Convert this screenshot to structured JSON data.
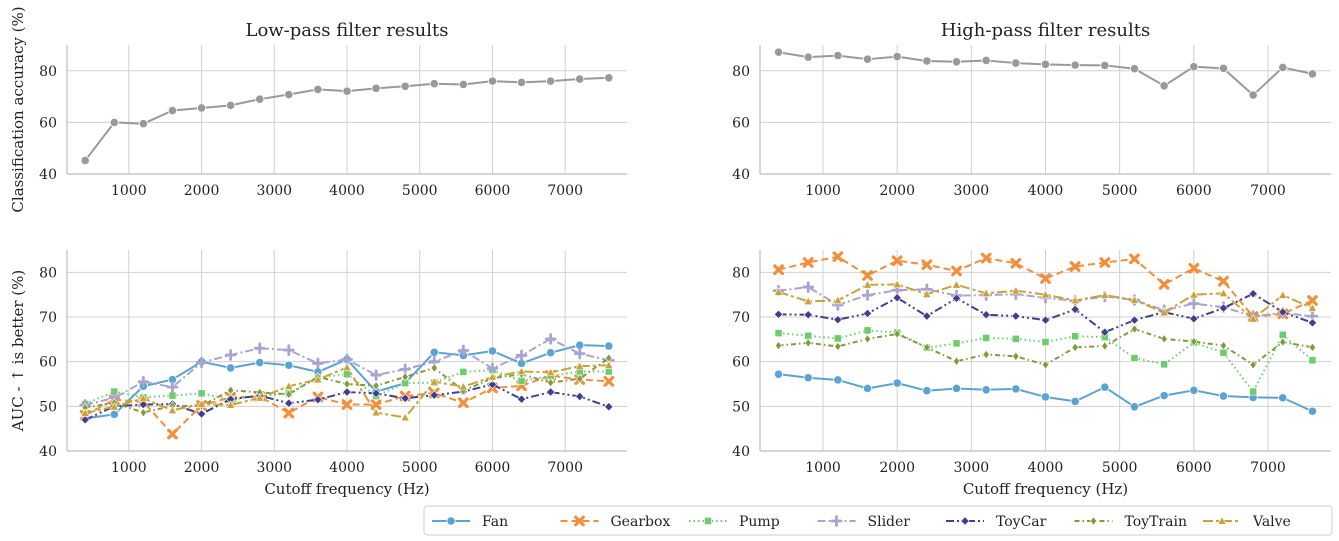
{
  "chart_data": [
    {
      "type": "line",
      "title": "Low-pass filter results",
      "xlabel": "",
      "ylabel": "Classification accuracy (%)",
      "x": [
        400,
        800,
        1200,
        1600,
        2000,
        2400,
        2800,
        3200,
        3600,
        4000,
        4400,
        4800,
        5200,
        5600,
        6000,
        6400,
        6800,
        7200,
        7600
      ],
      "xticks": [
        "1000",
        "2000",
        "3000",
        "4000",
        "5000",
        "6000",
        "7000"
      ],
      "ylim": [
        40,
        90
      ],
      "yticks": [
        "40",
        "60",
        "80"
      ],
      "grid": true,
      "series": [
        {
          "values": [
            45.2,
            60.0,
            59.5,
            64.6,
            65.6,
            66.6,
            69.0,
            70.8,
            72.8,
            72.1,
            73.2,
            74.0,
            75.0,
            74.7,
            76.0,
            75.5,
            76.0,
            76.8,
            77.3
          ]
        }
      ]
    },
    {
      "type": "line",
      "title": "High-pass filter results",
      "xlabel": "",
      "ylabel": "",
      "x": [
        400,
        800,
        1200,
        1600,
        2000,
        2400,
        2800,
        3200,
        3600,
        4000,
        4400,
        4800,
        5200,
        5600,
        6000,
        6400,
        6800,
        7200,
        7600
      ],
      "xticks": [
        "1000",
        "2000",
        "3000",
        "4000",
        "5000",
        "6000",
        "7000"
      ],
      "ylim": [
        40,
        90
      ],
      "yticks": [
        "40",
        "60",
        "80"
      ],
      "grid": true,
      "series": [
        {
          "values": [
            87.2,
            85.3,
            85.9,
            84.5,
            85.5,
            83.8,
            83.5,
            84.0,
            83.0,
            82.5,
            82.2,
            82.1,
            80.8,
            74.2,
            81.6,
            80.9,
            70.6,
            81.3,
            78.8
          ]
        }
      ]
    },
    {
      "type": "line",
      "title": "",
      "xlabel": "Cutoff frequency (Hz)",
      "ylabel": "AUC - ↑ is better (%)",
      "x": [
        400,
        800,
        1200,
        1600,
        2000,
        2400,
        2800,
        3200,
        3600,
        4000,
        4400,
        4800,
        5200,
        5600,
        6000,
        6400,
        6800,
        7200,
        7600
      ],
      "xticks": [
        "1000",
        "2000",
        "3000",
        "4000",
        "5000",
        "6000",
        "7000"
      ],
      "ylim": [
        40,
        85
      ],
      "yticks": [
        "40",
        "50",
        "60",
        "70",
        "80"
      ],
      "grid": true,
      "series": [
        {
          "name": "Fan",
          "values": [
            47.3,
            48.2,
            54.5,
            56.0,
            60.0,
            58.6,
            59.8,
            59.2,
            57.7,
            60.5,
            53.3,
            55.2,
            62.1,
            61.4,
            62.4,
            59.6,
            62.0,
            63.7,
            63.5
          ]
        },
        {
          "name": "Gearbox",
          "values": [
            48.0,
            51.5,
            51.0,
            43.8,
            50.2,
            52.0,
            52.2,
            48.5,
            52.1,
            50.4,
            50.4,
            52.3,
            53.0,
            50.8,
            54.1,
            54.6,
            56.9,
            56.0,
            55.6
          ]
        },
        {
          "name": "Pump",
          "values": [
            50.5,
            53.3,
            52.0,
            52.4,
            52.9,
            51.5,
            52.3,
            52.9,
            56.4,
            57.2,
            52.3,
            55.2,
            55.3,
            57.7,
            58.1,
            55.7,
            56.8,
            57.8,
            57.8
          ]
        },
        {
          "name": "Slider",
          "values": [
            50.3,
            51.9,
            55.5,
            54.3,
            59.8,
            61.5,
            63.0,
            62.6,
            59.6,
            60.5,
            57.0,
            58.3,
            60.0,
            62.5,
            58.5,
            61.4,
            65.1,
            61.8,
            60.3
          ]
        },
        {
          "name": "ToyCar",
          "values": [
            47.0,
            50.0,
            50.4,
            50.5,
            48.3,
            51.6,
            52.4,
            50.7,
            51.5,
            53.2,
            52.9,
            51.8,
            52.5,
            53.3,
            54.9,
            51.6,
            53.2,
            52.2,
            49.9
          ]
        },
        {
          "name": "ToyTrain",
          "values": [
            49.7,
            50.8,
            48.6,
            50.1,
            50.1,
            53.6,
            53.1,
            52.7,
            56.6,
            55.0,
            54.6,
            56.6,
            58.6,
            53.5,
            56.3,
            57.2,
            55.3,
            56.2,
            60.8
          ]
        },
        {
          "name": "Valve",
          "values": [
            48.5,
            49.9,
            51.8,
            49.1,
            50.5,
            50.3,
            51.9,
            54.5,
            56.0,
            58.7,
            48.6,
            47.5,
            55.5,
            54.4,
            56.6,
            57.8,
            57.6,
            59.0,
            59.2
          ]
        }
      ]
    },
    {
      "type": "line",
      "title": "",
      "xlabel": "Cutoff frequency (Hz)",
      "ylabel": "",
      "x": [
        400,
        800,
        1200,
        1600,
        2000,
        2400,
        2800,
        3200,
        3600,
        4000,
        4400,
        4800,
        5200,
        5600,
        6000,
        6400,
        6800,
        7200,
        7600
      ],
      "xticks": [
        "1000",
        "2000",
        "3000",
        "4000",
        "5000",
        "6000",
        "7000"
      ],
      "ylim": [
        40,
        85
      ],
      "yticks": [
        "40",
        "50",
        "60",
        "70",
        "80"
      ],
      "grid": true,
      "series": [
        {
          "name": "Fan",
          "values": [
            57.2,
            56.4,
            55.9,
            54.0,
            55.2,
            53.5,
            54.0,
            53.7,
            53.9,
            52.1,
            51.1,
            54.3,
            49.9,
            52.4,
            53.6,
            52.3,
            52.0,
            51.9,
            48.9
          ]
        },
        {
          "name": "Gearbox",
          "values": [
            80.6,
            82.2,
            83.5,
            79.3,
            82.6,
            81.7,
            80.3,
            83.2,
            82.0,
            78.6,
            81.3,
            82.2,
            83.0,
            77.3,
            80.9,
            78.0,
            70.1,
            70.7,
            73.7
          ]
        },
        {
          "name": "Pump",
          "values": [
            66.4,
            65.8,
            65.2,
            67.0,
            66.5,
            63.1,
            64.1,
            65.3,
            65.1,
            64.4,
            65.7,
            65.5,
            60.8,
            59.4,
            64.3,
            62.0,
            53.3,
            66.0,
            60.3
          ]
        },
        {
          "name": "Slider",
          "values": [
            75.9,
            76.7,
            72.7,
            74.9,
            76.0,
            76.2,
            74.8,
            74.9,
            75.1,
            74.3,
            73.6,
            74.6,
            73.8,
            71.5,
            73.0,
            72.2,
            70.2,
            70.9,
            70.2
          ]
        },
        {
          "name": "ToyCar",
          "values": [
            70.6,
            70.5,
            69.4,
            70.8,
            74.3,
            70.2,
            74.2,
            70.5,
            70.2,
            69.3,
            71.7,
            66.6,
            69.3,
            71.1,
            69.6,
            72.0,
            75.2,
            71.1,
            68.7
          ]
        },
        {
          "name": "ToyTrain",
          "values": [
            63.6,
            64.2,
            63.4,
            65.1,
            66.2,
            63.2,
            60.1,
            61.6,
            61.2,
            59.3,
            63.2,
            63.5,
            67.3,
            65.1,
            64.5,
            63.6,
            59.3,
            64.4,
            63.2
          ]
        },
        {
          "name": "Valve",
          "values": [
            75.6,
            73.5,
            73.7,
            77.2,
            77.3,
            75.1,
            77.2,
            75.3,
            75.9,
            75.0,
            73.7,
            74.9,
            73.8,
            71.0,
            75.0,
            75.3,
            69.6,
            74.9,
            72.0
          ]
        }
      ]
    }
  ],
  "legend": {
    "placement": "bottom-right",
    "entries": [
      {
        "label": "Fan",
        "color": "#5ba3d0",
        "dash": "solid",
        "marker": "circle"
      },
      {
        "label": "Gearbox",
        "color": "#f28e3c",
        "dash": "dashed",
        "marker": "x"
      },
      {
        "label": "Pump",
        "color": "#6dcc6d",
        "dash": "dotted",
        "marker": "square"
      },
      {
        "label": "Slider",
        "color": "#a9a3d3",
        "dash": "dashdot",
        "marker": "plus"
      },
      {
        "label": "ToyCar",
        "color": "#413f8c",
        "dash": "dashdotdot",
        "marker": "diamond"
      },
      {
        "label": "ToyTrain",
        "color": "#7f9b3c",
        "dash": "dashdot2",
        "marker": "thin-diamond"
      },
      {
        "label": "Valve",
        "color": "#c8a33a",
        "dash": "longdash",
        "marker": "triangle"
      }
    ]
  },
  "colors": {
    "accuracy_series": "#999999",
    "grid": "#d0d0d0",
    "axis": "#bdbdbd"
  }
}
